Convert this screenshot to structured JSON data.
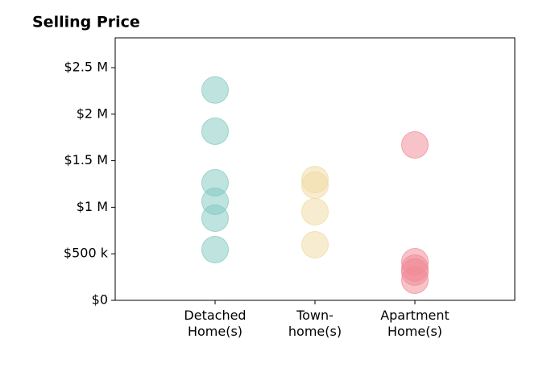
{
  "chart_data": {
    "type": "strip",
    "title": "Selling Price",
    "categories": [
      "Detached\nHome(s)",
      "Town-\nhome(s)",
      "Apartment\nHome(s)"
    ],
    "values": [
      [
        2260000,
        1817000,
        1263000,
        1064000,
        882000,
        545000
      ],
      [
        1298000,
        1237000,
        952000,
        597000
      ],
      [
        1670000,
        415000,
        346000,
        303000,
        216000
      ]
    ],
    "colors": [
      "#7fc7bf",
      "#f0d9a0",
      "#f08893"
    ],
    "ylim": [
      0,
      2820000
    ],
    "yticks": [
      {
        "value": 0,
        "label": "$0"
      },
      {
        "value": 500000,
        "label": "$500 k"
      },
      {
        "value": 1000000,
        "label": "$1 M"
      },
      {
        "value": 1500000,
        "label": "$1.5 M"
      },
      {
        "value": 2000000,
        "label": "$2 M"
      },
      {
        "value": 2500000,
        "label": "$2.5 M"
      }
    ]
  }
}
